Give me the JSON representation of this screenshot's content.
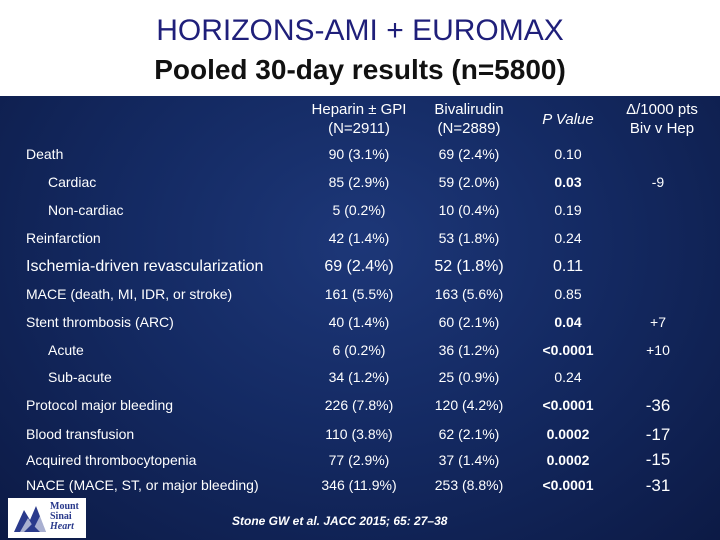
{
  "title": {
    "line1": "HORIZONS-AMI + EUROMAX",
    "line2": "Pooled 30-day results (n=5800)"
  },
  "columns": {
    "heparin": [
      "Heparin ± GPI",
      "(N=2911)"
    ],
    "bivalirudin": [
      "Bivalirudin",
      "(N=2889)"
    ],
    "p_value": "P Value",
    "delta": [
      "Δ/1000 pts",
      "Biv v Hep"
    ]
  },
  "rows": [
    {
      "label": "Death",
      "hep": "90 (3.1%)",
      "biv": "69 (2.4%)",
      "p": "0.10",
      "delta": ""
    },
    {
      "label": "Cardiac",
      "hep": "85 (2.9%)",
      "biv": "59 (2.0%)",
      "p": "0.03",
      "delta": "-9"
    },
    {
      "label": "Non‑cardiac",
      "hep": "5 (0.2%)",
      "biv": "10 (0.4%)",
      "p": "0.19",
      "delta": ""
    },
    {
      "label": "Reinfarction",
      "hep": "42 (1.4%)",
      "biv": "53 (1.8%)",
      "p": "0.24",
      "delta": ""
    },
    {
      "label": "Ischemia-driven revascularization",
      "hep": "69 (2.4%)",
      "biv": "52 (1.8%)",
      "p": "0.11",
      "delta": ""
    },
    {
      "label": "MACE (death, MI, IDR, or stroke)",
      "hep": "161 (5.5%)",
      "biv": "163 (5.6%)",
      "p": "0.85",
      "delta": ""
    },
    {
      "label": "Stent thrombosis (ARC)",
      "hep": "40 (1.4%)",
      "biv": "60 (2.1%)",
      "p": "0.04",
      "delta": "+7"
    },
    {
      "label": "Acute",
      "hep": "6 (0.2%)",
      "biv": "36 (1.2%)",
      "p": "<0.0001",
      "delta": "+10"
    },
    {
      "label": "Sub‑acute",
      "hep": "34 (1.2%)",
      "biv": "25 (0.9%)",
      "p": "0.24",
      "delta": ""
    },
    {
      "label": "Protocol major bleeding",
      "hep": "226 (7.8%)",
      "biv": "120 (4.2%)",
      "p": "<0.0001",
      "delta": "-36"
    },
    {
      "label": "Blood transfusion",
      "hep": "110 (3.8%)",
      "biv": "62 (2.1%)",
      "p": "0.0002",
      "delta": "-17"
    },
    {
      "label": "Acquired thrombocytopenia",
      "hep": "77 (2.9%)",
      "biv": "37 (1.4%)",
      "p": "0.0002",
      "delta": "-15"
    },
    {
      "label": "NACE (MACE, ST, or major bleeding)",
      "hep": "346 (11.9%)",
      "biv": "253 (8.8%)",
      "p": "<0.0001",
      "delta": "-31"
    }
  ],
  "logo": [
    "Mount",
    "Sinai",
    "Heart"
  ],
  "citation": "Stone GW et al. JACC 2015; 65: 27–38"
}
